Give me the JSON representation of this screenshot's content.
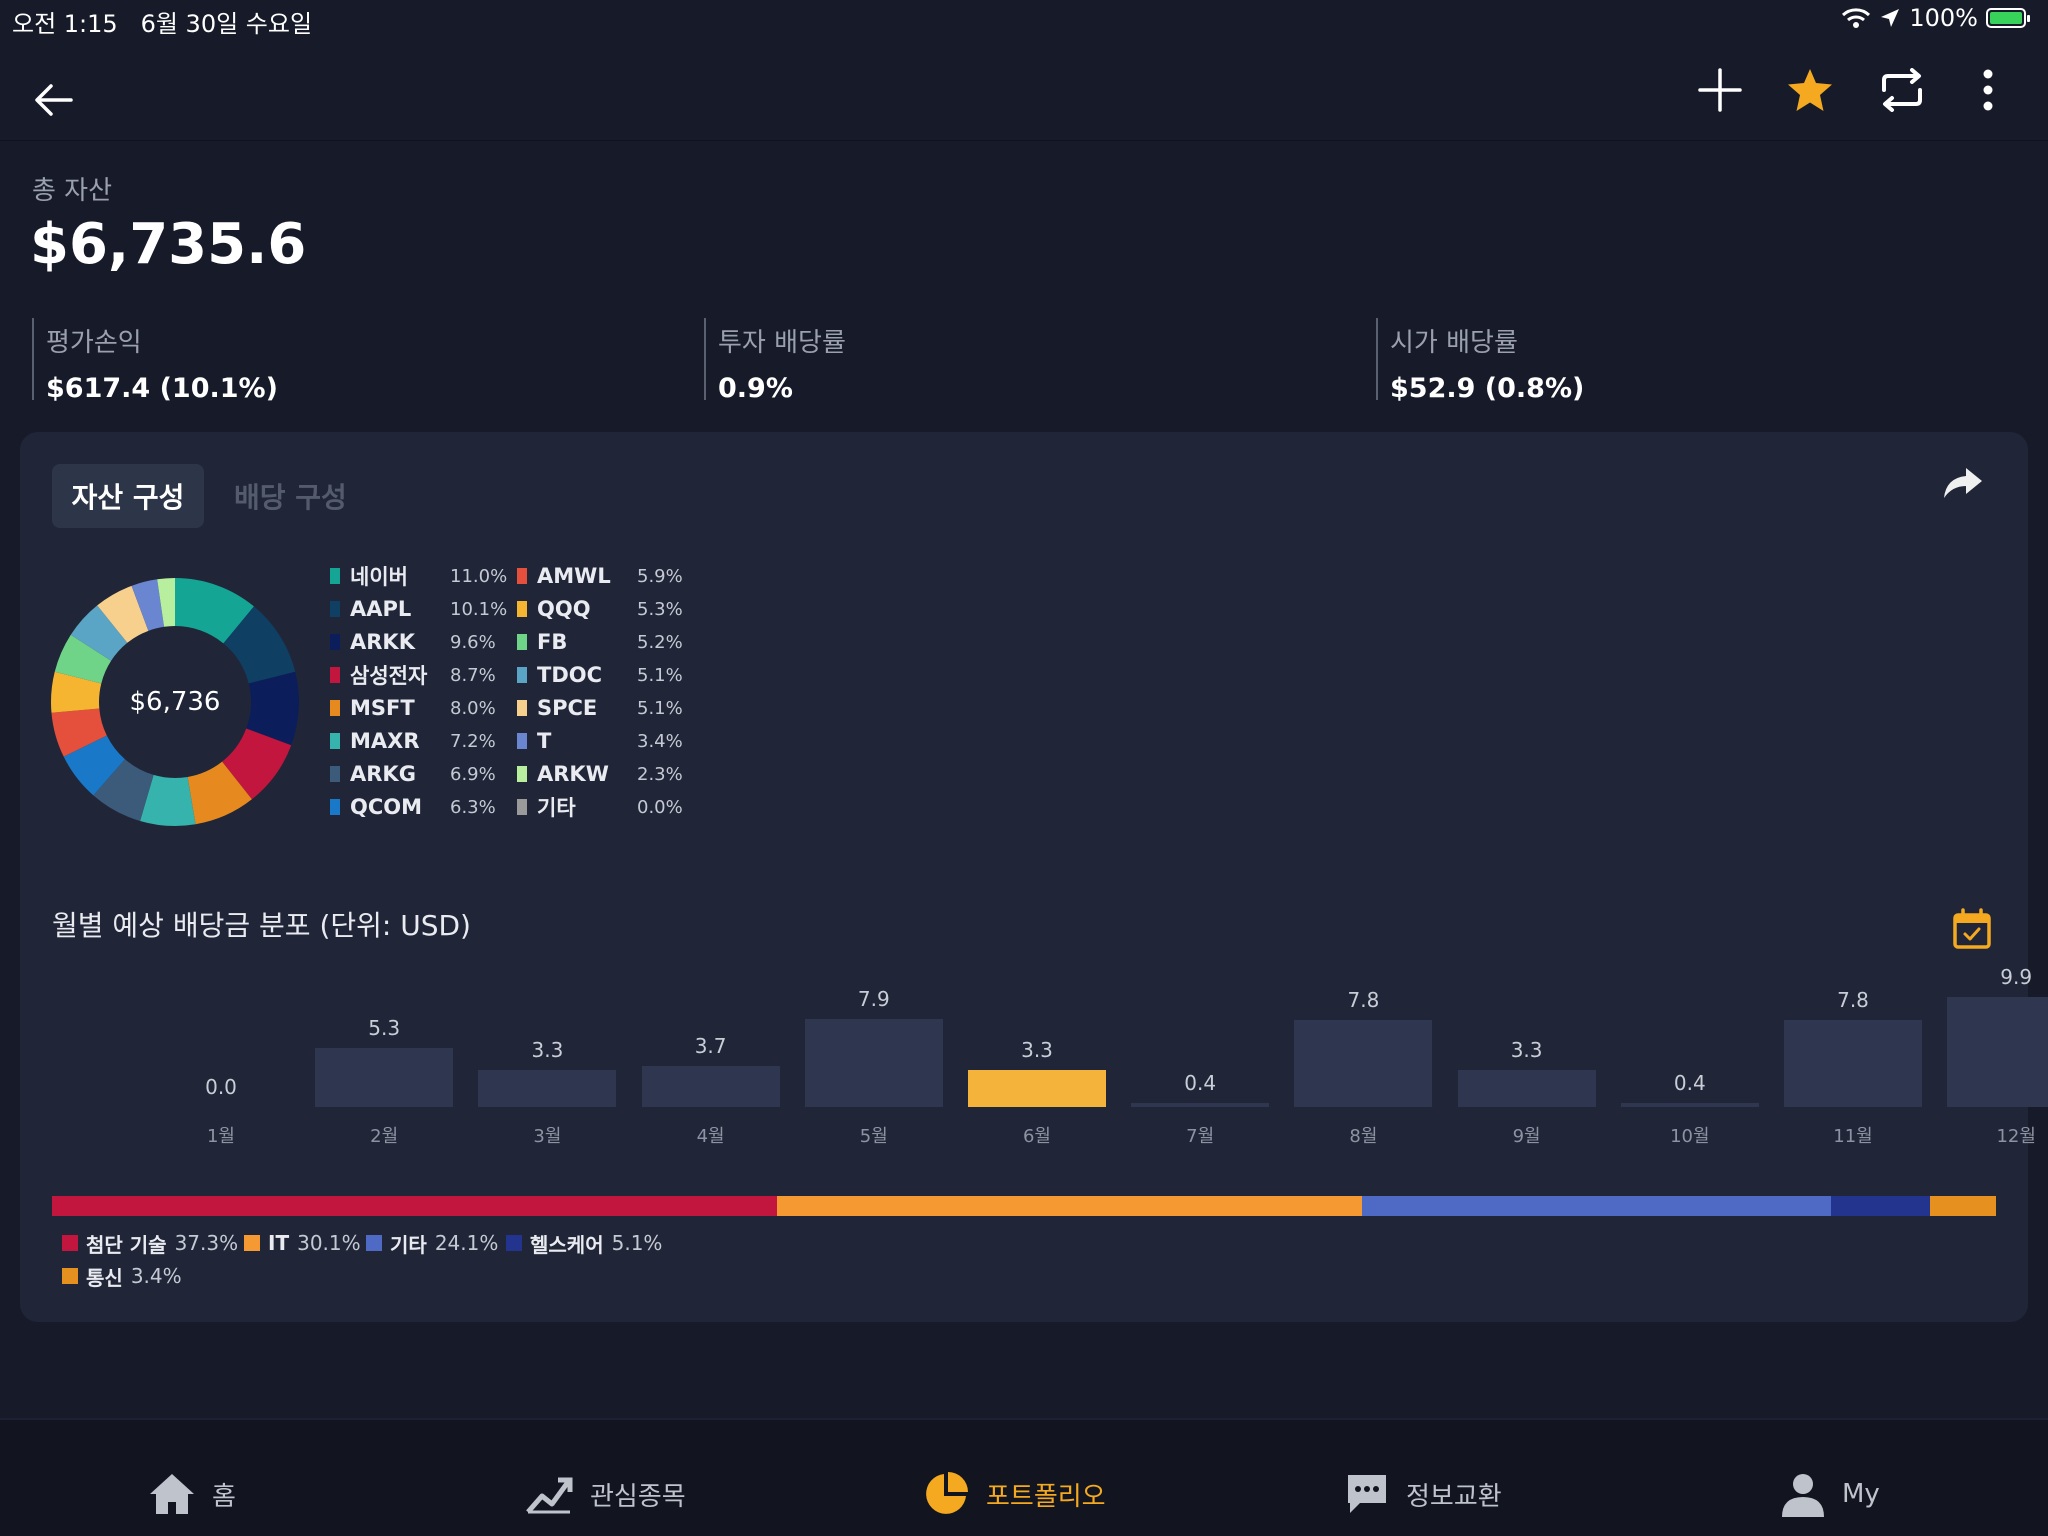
{
  "status_bar": {
    "time": "오전 1:15",
    "date": "6월 30일 수요일",
    "battery": "100%"
  },
  "nav": {
    "back_icon": "back-arrow-icon",
    "actions": [
      "add-icon",
      "star-icon",
      "repeat-icon",
      "more-icon"
    ],
    "star_color": "#f4a920"
  },
  "summary": {
    "total_label": "총 자산",
    "total_value": "$6,735.6",
    "metrics": [
      {
        "label": "평가손익",
        "value": "$617.4 (10.1%)"
      },
      {
        "label": "투자 배당률",
        "value": "0.9%"
      },
      {
        "label": "시가 배당률",
        "value": "$52.9 (0.8%)"
      }
    ]
  },
  "card": {
    "tabs": [
      "자산 구성",
      "배당 구성"
    ],
    "active_tab": "자산 구성",
    "donut_center": "$6,736"
  },
  "holdings": [
    {
      "name": "네이버",
      "pct": "11.0%",
      "value": 11.0,
      "color": "#14a594"
    },
    {
      "name": "AAPL",
      "pct": "10.1%",
      "value": 10.1,
      "color": "#0f3f63"
    },
    {
      "name": "ARKK",
      "pct": "9.6%",
      "value": 9.6,
      "color": "#0b1e5b"
    },
    {
      "name": "삼성전자",
      "pct": "8.7%",
      "value": 8.7,
      "color": "#c2163f"
    },
    {
      "name": "MSFT",
      "pct": "8.0%",
      "value": 8.0,
      "color": "#e68a1f"
    },
    {
      "name": "MAXR",
      "pct": "7.2%",
      "value": 7.2,
      "color": "#36b3ad"
    },
    {
      "name": "ARKG",
      "pct": "6.9%",
      "value": 6.9,
      "color": "#3c5a7a"
    },
    {
      "name": "QCOM",
      "pct": "6.3%",
      "value": 6.3,
      "color": "#1978c7"
    },
    {
      "name": "AMWL",
      "pct": "5.9%",
      "value": 5.9,
      "color": "#e4503b"
    },
    {
      "name": "QQQ",
      "pct": "5.3%",
      "value": 5.3,
      "color": "#f5b531"
    },
    {
      "name": "FB",
      "pct": "5.2%",
      "value": 5.2,
      "color": "#6fd487"
    },
    {
      "name": "TDOC",
      "pct": "5.1%",
      "value": 5.1,
      "color": "#5aa4c5"
    },
    {
      "name": "SPCE",
      "pct": "5.1%",
      "value": 5.1,
      "color": "#f8d08d"
    },
    {
      "name": "T",
      "pct": "3.4%",
      "value": 3.4,
      "color": "#6b86d1"
    },
    {
      "name": "ARKW",
      "pct": "2.3%",
      "value": 2.3,
      "color": "#b8ef9e"
    },
    {
      "name": "기타",
      "pct": "0.0%",
      "value": 0.0,
      "color": "#9a9a9a"
    }
  ],
  "dividends": {
    "title": "월별 예상 배당금 분포 (단위: USD)",
    "highlight_month": "6월",
    "highlight_color": "#f4b43c"
  },
  "chart_data": {
    "type": "bar",
    "title": "월별 예상 배당금 분포 (단위: USD)",
    "categories": [
      "1월",
      "2월",
      "3월",
      "4월",
      "5월",
      "6월",
      "7월",
      "8월",
      "9월",
      "10월",
      "11월",
      "12월"
    ],
    "values": [
      0.0,
      5.3,
      3.3,
      3.7,
      7.9,
      3.3,
      0.4,
      7.8,
      3.3,
      0.4,
      7.8,
      9.9
    ],
    "value_labels": [
      "0.0",
      "5.3",
      "3.3",
      "3.7",
      "7.9",
      "3.3",
      "0.4",
      "7.8",
      "3.3",
      "0.4",
      "7.8",
      "9.9"
    ],
    "ylim": [
      0,
      9.9
    ]
  },
  "sectors": [
    {
      "name": "첨단 기술",
      "pct": "37.3%",
      "value": 37.3,
      "color": "#c2163f"
    },
    {
      "name": "IT",
      "pct": "30.1%",
      "value": 30.1,
      "color": "#f59a32"
    },
    {
      "name": "기타",
      "pct": "24.1%",
      "value": 24.1,
      "color": "#4f6ac4"
    },
    {
      "name": "헬스케어",
      "pct": "5.1%",
      "value": 5.1,
      "color": "#23348f"
    },
    {
      "name": "통신",
      "pct": "3.4%",
      "value": 3.4,
      "color": "#e6901f"
    }
  ],
  "tabbar": {
    "items": [
      {
        "label": "홈",
        "icon": "home-icon"
      },
      {
        "label": "관심종목",
        "icon": "trend-icon"
      },
      {
        "label": "포트폴리오",
        "icon": "pie-icon"
      },
      {
        "label": "정보교환",
        "icon": "chat-icon"
      },
      {
        "label": "My",
        "icon": "person-icon"
      }
    ],
    "active": "포트폴리오",
    "active_color": "#f4a920"
  }
}
